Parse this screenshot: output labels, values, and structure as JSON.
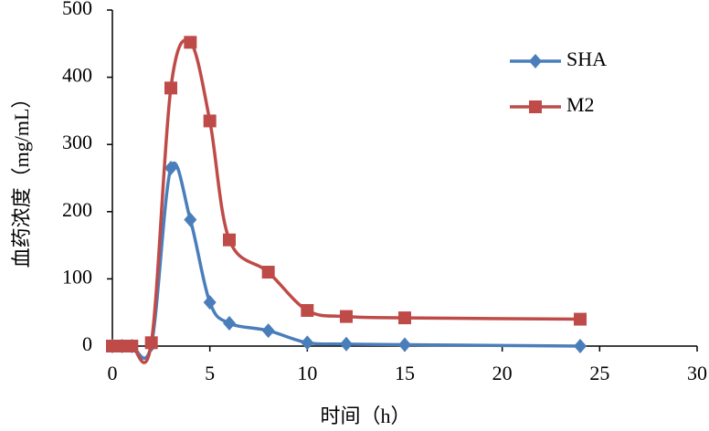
{
  "chart_data": {
    "type": "line",
    "x_label": "时间（h）",
    "y_label": "血药浓度（mg/mL）",
    "xlim": [
      0,
      30
    ],
    "xticks": [
      0,
      5,
      10,
      15,
      20,
      25,
      30
    ],
    "ylim": [
      0,
      500
    ],
    "yticks": [
      0,
      100,
      200,
      300,
      400,
      500
    ],
    "grid": false,
    "legend": "upper right",
    "smooth": true,
    "series": [
      {
        "name": "SHA",
        "color": "#4a7ebb",
        "marker": "diamond",
        "x": [
          0,
          0.5,
          1,
          2,
          3,
          4,
          5,
          6,
          8,
          10,
          12,
          15,
          24
        ],
        "values": [
          0,
          0,
          0,
          2,
          265,
          188,
          65,
          34,
          23,
          5,
          3,
          2,
          0
        ]
      },
      {
        "name": "M2",
        "color": "#be4b48",
        "marker": "square",
        "x": [
          0,
          0.5,
          1,
          2,
          3,
          4,
          5,
          6,
          8,
          10,
          12,
          15,
          24
        ],
        "values": [
          0,
          0,
          0,
          5,
          384,
          452,
          335,
          158,
          110,
          53,
          44,
          42,
          40
        ]
      }
    ]
  }
}
